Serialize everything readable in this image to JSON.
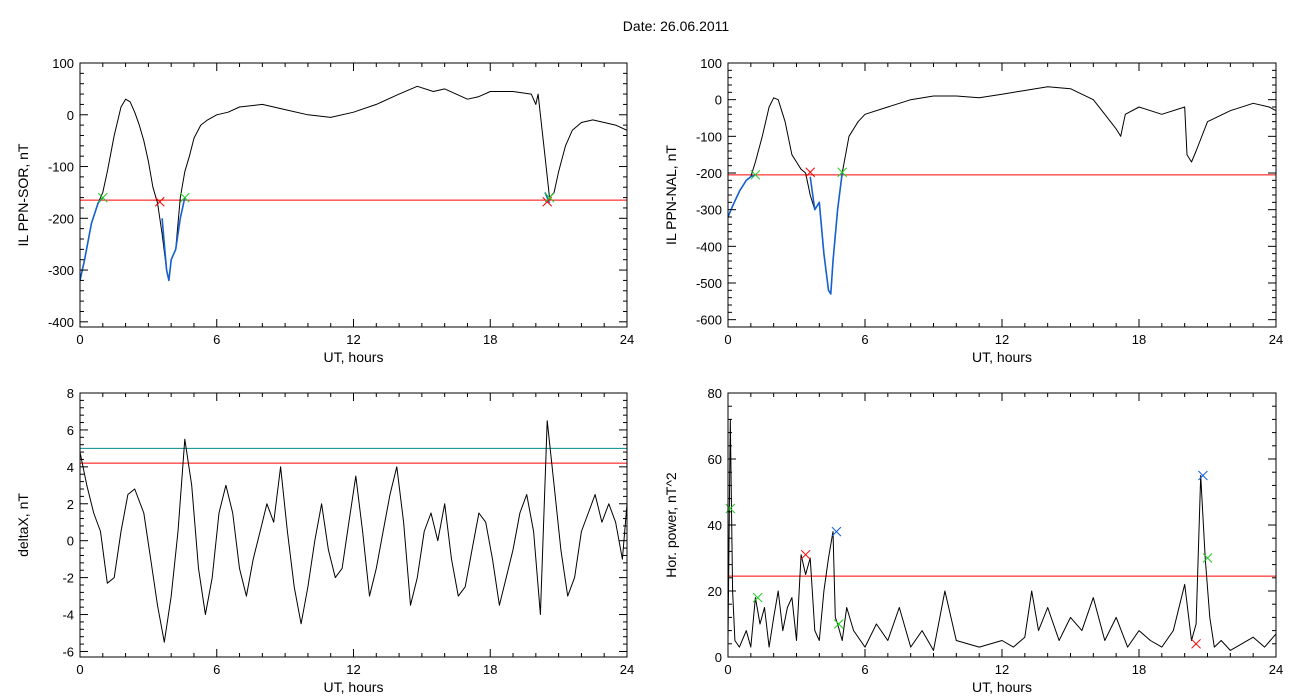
{
  "page": {
    "title": "Date:  26.06.2011"
  },
  "colors": {
    "trace": "#000000",
    "threshold_red": "#ff0000",
    "threshold_teal": "#008b8b",
    "segment_blue": "#1560d0",
    "marker_red": "#ff0000",
    "marker_green": "#22cc22",
    "marker_blue": "#1060e0"
  },
  "chart_data": [
    {
      "type": "line",
      "xlabel": "UT, hours",
      "ylabel": "IL PPN-SOR, nT",
      "xlim": [
        0,
        24
      ],
      "ylim": [
        -410,
        100
      ],
      "xticks": [
        0,
        6,
        12,
        18,
        24
      ],
      "yticks": [
        -400,
        -300,
        -200,
        -100,
        0,
        100
      ],
      "series": [
        {
          "style": "line",
          "color": "#000000",
          "x": [
            0,
            0.2,
            0.5,
            0.8,
            1.0,
            1.2,
            1.5,
            1.8,
            2.0,
            2.2,
            2.4,
            2.6,
            2.8,
            3.0,
            3.2,
            3.4,
            3.6,
            3.8,
            3.9,
            4.0,
            4.2,
            4.4,
            4.6,
            4.8,
            5.0,
            5.3,
            5.6,
            6.0,
            6.5,
            7.0,
            8,
            9,
            10,
            11,
            12,
            13,
            14,
            14.8,
            15.5,
            16,
            17,
            17.5,
            18,
            19,
            19.8,
            20.0,
            20.1,
            20.2,
            20.4,
            20.6,
            20.8,
            21.0,
            21.3,
            21.6,
            22,
            22.5,
            23,
            23.5,
            24
          ],
          "y": [
            -320,
            -280,
            -210,
            -170,
            -150,
            -110,
            -40,
            15,
            30,
            25,
            5,
            -20,
            -50,
            -90,
            -140,
            -170,
            -230,
            -300,
            -320,
            -280,
            -260,
            -160,
            -110,
            -80,
            -45,
            -20,
            -10,
            0,
            5,
            15,
            20,
            10,
            0,
            -5,
            5,
            20,
            40,
            55,
            45,
            50,
            30,
            35,
            45,
            45,
            40,
            20,
            40,
            0,
            -80,
            -160,
            -150,
            -110,
            -60,
            -30,
            -15,
            -10,
            -15,
            -20,
            -30
          ]
        },
        {
          "style": "segment",
          "color": "#1560d0",
          "x": [
            0,
            0.2,
            0.5,
            0.8,
            1.0
          ],
          "y": [
            -320,
            -280,
            -210,
            -170,
            -160
          ]
        },
        {
          "style": "segment",
          "color": "#1560d0",
          "x": [
            3.6,
            3.8,
            3.9,
            4.0,
            4.2,
            4.4,
            4.6
          ],
          "y": [
            -200,
            -300,
            -320,
            -280,
            -260,
            -200,
            -160
          ]
        },
        {
          "style": "segment",
          "color": "#1560d0",
          "x": [
            20.4,
            20.6
          ],
          "y": [
            -150,
            -170
          ]
        }
      ],
      "thresholds": [
        {
          "y": -165,
          "color": "#ff0000"
        }
      ],
      "markers": [
        {
          "x": 1.0,
          "y": -160,
          "color": "#22cc22"
        },
        {
          "x": 3.5,
          "y": -168,
          "color": "#ff0000"
        },
        {
          "x": 4.6,
          "y": -160,
          "color": "#22cc22"
        },
        {
          "x": 20.5,
          "y": -168,
          "color": "#ff0000"
        },
        {
          "x": 20.6,
          "y": -160,
          "color": "#22cc22"
        }
      ]
    },
    {
      "type": "line",
      "xlabel": "UT, hours",
      "ylabel": "IL PPN-NAL, nT",
      "xlim": [
        0,
        24
      ],
      "ylim": [
        -620,
        100
      ],
      "xticks": [
        0,
        6,
        12,
        18,
        24
      ],
      "yticks": [
        -600,
        -500,
        -400,
        -300,
        -200,
        -100,
        0,
        100
      ],
      "series": [
        {
          "style": "line",
          "color": "#000000",
          "x": [
            0,
            0.2,
            0.5,
            0.8,
            1.0,
            1.2,
            1.5,
            1.8,
            2.0,
            2.2,
            2.5,
            2.8,
            3.0,
            3.2,
            3.4,
            3.6,
            3.8,
            4.0,
            4.2,
            4.4,
            4.5,
            4.6,
            4.8,
            5.0,
            5.3,
            5.7,
            6,
            7,
            8,
            9,
            10,
            11,
            12,
            13,
            14,
            15,
            16,
            16.5,
            17,
            17.2,
            17.4,
            18,
            19,
            20,
            20.1,
            20.3,
            20.5,
            21,
            22,
            23,
            23.7,
            24
          ],
          "y": [
            -320,
            -290,
            -250,
            -220,
            -210,
            -170,
            -100,
            -20,
            5,
            0,
            -60,
            -150,
            -170,
            -190,
            -200,
            -260,
            -300,
            -280,
            -420,
            -520,
            -530,
            -440,
            -300,
            -200,
            -100,
            -60,
            -40,
            -20,
            0,
            10,
            10,
            5,
            15,
            25,
            35,
            30,
            0,
            -40,
            -80,
            -100,
            -40,
            -20,
            -40,
            -20,
            -150,
            -170,
            -140,
            -60,
            -30,
            -10,
            -20,
            -30
          ]
        },
        {
          "style": "segment",
          "color": "#1560d0",
          "x": [
            0,
            0.2,
            0.5,
            0.8,
            1.0,
            1.2
          ],
          "y": [
            -320,
            -290,
            -250,
            -220,
            -210,
            -205
          ]
        },
        {
          "style": "segment",
          "color": "#1560d0",
          "x": [
            3.6,
            3.8,
            4.0,
            4.2,
            4.4,
            4.5,
            4.6,
            4.8,
            5.0
          ],
          "y": [
            -210,
            -300,
            -280,
            -420,
            -520,
            -530,
            -440,
            -300,
            -200
          ]
        }
      ],
      "thresholds": [
        {
          "y": -205,
          "color": "#ff0000"
        }
      ],
      "markers": [
        {
          "x": 1.2,
          "y": -205,
          "color": "#22cc22"
        },
        {
          "x": 3.6,
          "y": -198,
          "color": "#ff0000"
        },
        {
          "x": 5.0,
          "y": -198,
          "color": "#22cc22"
        }
      ]
    },
    {
      "type": "line",
      "xlabel": "UT, hours",
      "ylabel": "deltaX, nT",
      "xlim": [
        0,
        24
      ],
      "ylim": [
        -6.3,
        8
      ],
      "xticks": [
        0,
        6,
        12,
        18,
        24
      ],
      "yticks": [
        -6,
        -4,
        -2,
        0,
        2,
        4,
        6,
        8
      ],
      "series": [
        {
          "style": "line",
          "color": "#000000",
          "x": [
            0,
            0.3,
            0.6,
            0.9,
            1.2,
            1.5,
            1.8,
            2.1,
            2.4,
            2.8,
            3.1,
            3.4,
            3.7,
            4.0,
            4.3,
            4.6,
            4.9,
            5.2,
            5.5,
            5.8,
            6.1,
            6.4,
            6.7,
            7.0,
            7.3,
            7.6,
            7.9,
            8.2,
            8.5,
            8.8,
            9.1,
            9.4,
            9.7,
            10.0,
            10.3,
            10.6,
            10.9,
            11.2,
            11.5,
            11.8,
            12.1,
            12.4,
            12.7,
            13.0,
            13.3,
            13.6,
            13.9,
            14.2,
            14.5,
            14.8,
            15.1,
            15.4,
            15.7,
            16.0,
            16.3,
            16.6,
            16.9,
            17.2,
            17.5,
            17.8,
            18.1,
            18.4,
            18.7,
            19.0,
            19.3,
            19.6,
            19.9,
            20.2,
            20.5,
            20.8,
            21.1,
            21.4,
            21.7,
            22.0,
            22.3,
            22.6,
            22.9,
            23.2,
            23.5,
            23.8,
            24
          ],
          "y": [
            4.8,
            3.0,
            1.5,
            0.5,
            -2.3,
            -2.0,
            0.5,
            2.5,
            2.8,
            1.5,
            -1.0,
            -3.5,
            -5.5,
            -3.0,
            0.5,
            5.5,
            3.0,
            -1.5,
            -4.0,
            -2.0,
            1.5,
            3.0,
            1.5,
            -1.5,
            -3.0,
            -1.0,
            0.5,
            2.0,
            1.0,
            4.0,
            0.5,
            -2.5,
            -4.5,
            -2.5,
            0.0,
            2.0,
            -0.5,
            -2.0,
            -1.5,
            1.0,
            3.5,
            0.5,
            -3.0,
            -1.5,
            0.5,
            2.5,
            4.0,
            1.0,
            -3.5,
            -2.0,
            0.5,
            1.5,
            0.0,
            2.0,
            -1.0,
            -3.0,
            -2.5,
            -0.5,
            1.5,
            1.0,
            -1.0,
            -3.5,
            -2.0,
            -0.5,
            1.5,
            2.5,
            0.5,
            -4.0,
            6.5,
            3.0,
            -0.5,
            -3.0,
            -2.0,
            0.5,
            1.5,
            2.5,
            1.0,
            2.0,
            1.0,
            -1.0,
            2.0
          ]
        }
      ],
      "thresholds": [
        {
          "y": 5.0,
          "color": "#008b8b"
        },
        {
          "y": 4.2,
          "color": "#ff0000"
        }
      ],
      "markers": []
    },
    {
      "type": "line",
      "xlabel": "UT, hours",
      "ylabel": "Hor. power, nT^2",
      "xlim": [
        0,
        24
      ],
      "ylim": [
        0,
        80
      ],
      "xticks": [
        0,
        6,
        12,
        18,
        24
      ],
      "yticks": [
        0,
        20,
        40,
        60,
        80
      ],
      "series": [
        {
          "style": "line",
          "color": "#000000",
          "x": [
            0,
            0.1,
            0.2,
            0.3,
            0.5,
            0.8,
            1.0,
            1.2,
            1.4,
            1.6,
            1.8,
            2.0,
            2.2,
            2.4,
            2.6,
            2.8,
            3.0,
            3.2,
            3.4,
            3.6,
            3.8,
            4.0,
            4.2,
            4.4,
            4.6,
            4.7,
            4.8,
            5.0,
            5.2,
            5.5,
            6.0,
            6.5,
            7.0,
            7.5,
            8.0,
            8.5,
            9.0,
            9.5,
            10,
            11,
            12,
            12.5,
            13,
            13.3,
            13.6,
            14,
            14.5,
            15,
            15.5,
            16,
            16.5,
            17,
            17.5,
            18,
            18.5,
            19,
            19.5,
            20,
            20.3,
            20.5,
            20.7,
            20.9,
            21.1,
            21.3,
            21.6,
            22,
            22.5,
            23,
            23.5,
            24
          ],
          "y": [
            5,
            72,
            20,
            5,
            3,
            8,
            3,
            18,
            10,
            15,
            3,
            12,
            20,
            8,
            15,
            18,
            5,
            31,
            25,
            30,
            8,
            5,
            20,
            30,
            38,
            12,
            10,
            5,
            15,
            8,
            3,
            10,
            5,
            15,
            3,
            8,
            2,
            20,
            5,
            3,
            5,
            3,
            6,
            20,
            8,
            15,
            5,
            12,
            8,
            18,
            5,
            12,
            3,
            8,
            5,
            3,
            8,
            22,
            5,
            10,
            55,
            30,
            12,
            3,
            5,
            2,
            4,
            6,
            3,
            7
          ]
        }
      ],
      "thresholds": [
        {
          "y": 24.5,
          "color": "#ff0000"
        }
      ],
      "markers": [
        {
          "x": 0.1,
          "y": 45,
          "color": "#22cc22"
        },
        {
          "x": 1.3,
          "y": 18,
          "color": "#22cc22"
        },
        {
          "x": 3.4,
          "y": 31,
          "color": "#ff0000"
        },
        {
          "x": 4.75,
          "y": 38,
          "color": "#1060e0"
        },
        {
          "x": 4.85,
          "y": 10,
          "color": "#22cc22"
        },
        {
          "x": 20.5,
          "y": 4,
          "color": "#ff0000"
        },
        {
          "x": 20.8,
          "y": 55,
          "color": "#1060e0"
        },
        {
          "x": 21.0,
          "y": 30,
          "color": "#22cc22"
        }
      ]
    }
  ]
}
